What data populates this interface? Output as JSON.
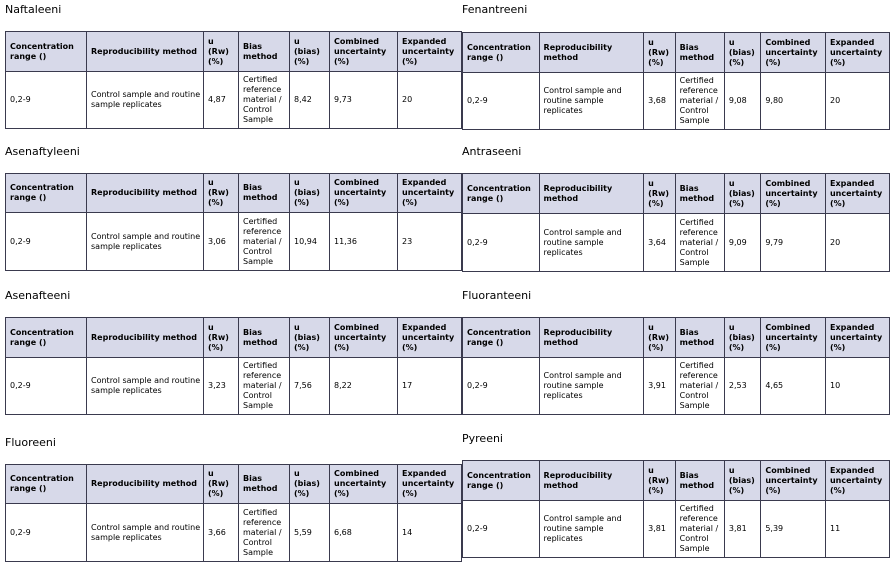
{
  "headers": {
    "conc": "Concentration range ()",
    "repro": "Reproducibility method",
    "urw": "u (Rw) (%)",
    "bias": "Bias method",
    "ubias": "u (bias) (%)",
    "comb": "Combined uncertainty (%)",
    "exp": "Expanded uncertainty (%)"
  },
  "tables": [
    {
      "title": "Naftaleeni",
      "range": "0,2-9",
      "repro": "Control sample and routine sample replicates",
      "urw": "4,87",
      "bias": "Certified reference material / Control Sample",
      "ubias": "8,42",
      "comb": "9,73",
      "exp": "20"
    },
    {
      "title": "Asenaftyleeni",
      "range": "0,2-9",
      "repro": "Control sample and routine sample replicates",
      "urw": "3,06",
      "bias": "Certified reference material / Control Sample",
      "ubias": "10,94",
      "comb": "11,36",
      "exp": "23"
    },
    {
      "title": "Asenafteeni",
      "range": "0,2-9",
      "repro": "Control sample and routine sample replicates",
      "urw": "3,23",
      "bias": "Certified reference material / Control Sample",
      "ubias": "7,56",
      "comb": "8,22",
      "exp": "17"
    },
    {
      "title": "Fluoreeni",
      "range": "0,2-9",
      "repro": "Control sample and routine sample replicates",
      "urw": "3,66",
      "bias": "Certified reference material / Control Sample",
      "ubias": "5,59",
      "comb": "6,68",
      "exp": "14"
    },
    {
      "title": "Fenantreeni",
      "range": "0,2-9",
      "repro": "Control sample and routine sample replicates",
      "urw": "3,68",
      "bias": "Certified reference material / Control Sample",
      "ubias": "9,08",
      "comb": "9,80",
      "exp": "20"
    },
    {
      "title": "Antraseeni",
      "range": "0,2-9",
      "repro": "Control sample and routine sample replicates",
      "urw": "3,64",
      "bias": "Certified reference material / Control Sample",
      "ubias": "9,09",
      "comb": "9,79",
      "exp": "20"
    },
    {
      "title": "Fluoranteeni",
      "range": "0,2-9",
      "repro": "Control sample and routine sample replicates",
      "urw": "3,91",
      "bias": "Certified reference material / Control Sample",
      "ubias": "2,53",
      "comb": "4,65",
      "exp": "10"
    },
    {
      "title": "Pyreeni",
      "range": "0,2-9",
      "repro": "Control sample and routine sample replicates",
      "urw": "3,81",
      "bias": "Certified reference material / Control Sample",
      "ubias": "3,81",
      "comb": "5,39",
      "exp": "11"
    }
  ]
}
